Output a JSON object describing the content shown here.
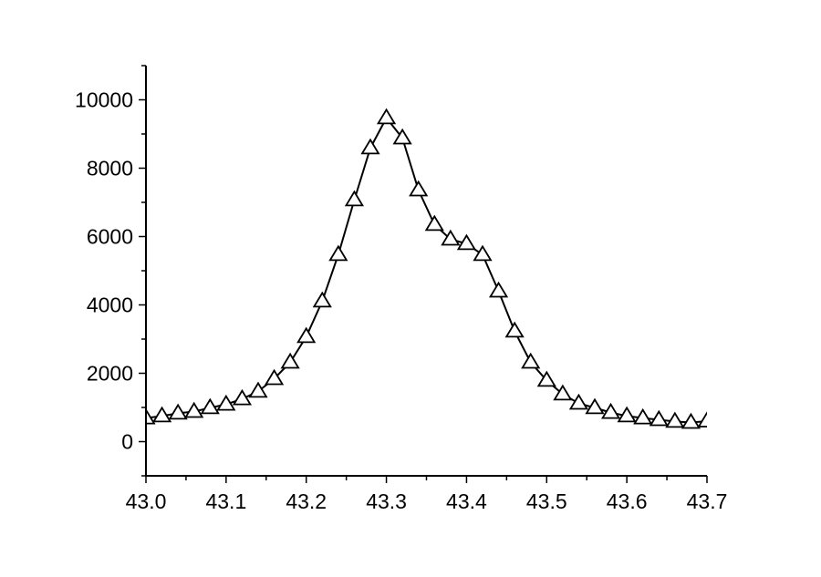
{
  "chart_data": {
    "type": "line",
    "title": "",
    "xlabel": "",
    "ylabel": "",
    "xlim": [
      43.0,
      43.7
    ],
    "ylim": [
      -1000,
      11000
    ],
    "x_ticks": [
      "43.0",
      "43.1",
      "43.2",
      "43.3",
      "43.4",
      "43.5",
      "43.6",
      "43.7"
    ],
    "y_ticks": [
      "0",
      "2000",
      "4000",
      "6000",
      "8000",
      "10000"
    ],
    "grid": false,
    "marker": "open-triangle",
    "line_color": "#000000",
    "series": [
      {
        "x": [
          43.0,
          43.02,
          43.04,
          43.06,
          43.08,
          43.1,
          43.12,
          43.14,
          43.16,
          43.18,
          43.2,
          43.22,
          43.24,
          43.26,
          43.28,
          43.3,
          43.32,
          43.34,
          43.36,
          43.38,
          43.4,
          43.42,
          43.44,
          43.46,
          43.48,
          43.5,
          43.52,
          43.54,
          43.56,
          43.58,
          43.6,
          43.62,
          43.64,
          43.66,
          43.68,
          43.7
        ],
        "y": [
          690,
          750,
          830,
          880,
          990,
          1090,
          1250,
          1470,
          1840,
          2320,
          3070,
          4110,
          5470,
          7070,
          8590,
          9470,
          8880,
          7360,
          6350,
          5920,
          5790,
          5470,
          4400,
          3230,
          2320,
          1790,
          1390,
          1120,
          990,
          850,
          750,
          690,
          640,
          590,
          560,
          600
        ]
      }
    ]
  }
}
